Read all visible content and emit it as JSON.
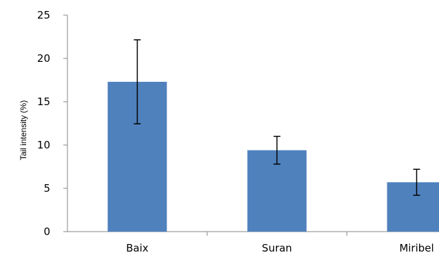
{
  "chart_data": {
    "type": "bar",
    "title": "",
    "xlabel": "",
    "ylabel": "Tail intensity (%)",
    "categories": [
      "Baix",
      "Suran",
      "Miribel"
    ],
    "series": [
      {
        "values": [
          17.3,
          9.4,
          5.7
        ],
        "error": [
          4.85,
          1.6,
          1.5
        ],
        "color": "#4f81bd"
      }
    ],
    "ylim": [
      0,
      25
    ],
    "yticks": [
      0,
      5,
      10,
      15,
      20,
      25
    ],
    "grid": false,
    "legend": "none"
  }
}
